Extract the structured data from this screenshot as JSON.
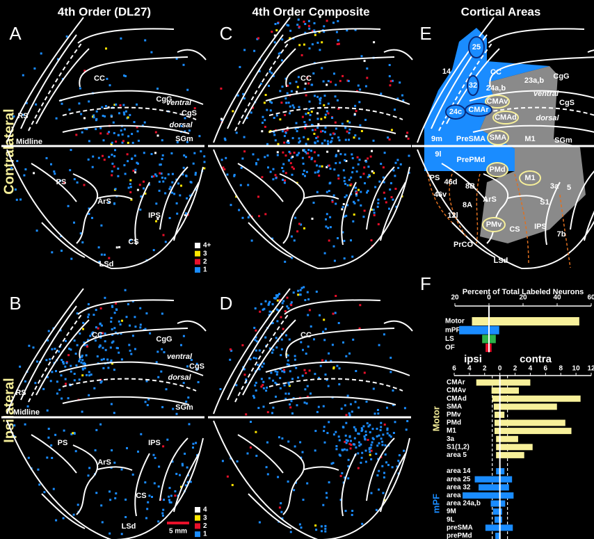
{
  "row_labels": [
    "Contralateral",
    "Ipsilateral"
  ],
  "dot_colors": [
    "#ffffff",
    "#ffe600",
    "#e8102a",
    "#1a8cff"
  ],
  "panels": [
    {
      "letter": "A",
      "title": "4th Order (DL27)",
      "labels": [
        "CC",
        "CgG",
        "RS",
        "ventral",
        "CgS",
        "dorsal",
        "SGm",
        "Midline",
        "PS",
        "ArS",
        "IPS",
        "CS",
        "LSd"
      ],
      "legend": [
        "4+",
        "3",
        "2",
        "1"
      ]
    },
    {
      "letter": "C",
      "title": "4th Order Composite",
      "labels": [
        "CC"
      ]
    },
    {
      "letter": "E",
      "title": "Cortical Areas",
      "labels": [
        "25",
        "14",
        "CC",
        "23a,b",
        "CgG",
        "32",
        "24a,b",
        "ventral",
        "CgS",
        "CMAv",
        "24c",
        "CMAr",
        "CMAd",
        "dorsal",
        "9m",
        "PreSMA",
        "SMA",
        "M1",
        "SGm",
        "9l",
        "PrePMd",
        "PMd",
        "M1",
        "3a",
        "5",
        "PS",
        "46d",
        "8B",
        "46v",
        "8A",
        "ArS",
        "S1",
        "12l",
        "PMv",
        "CS",
        "IPS",
        "7b",
        "PrCO",
        "LSd"
      ]
    },
    {
      "letter": "B",
      "labels": [
        "CC",
        "CgG",
        "RS",
        "ventral",
        "CgS",
        "dorsal",
        "SGm",
        "Midline",
        "PS",
        "ArS",
        "IPS",
        "CS",
        "LSd"
      ],
      "legend": [
        "4",
        "3",
        "2",
        "1"
      ],
      "scale_bar": "5 mm"
    },
    {
      "letter": "D",
      "labels": [
        "CC"
      ]
    },
    {
      "letter": "F"
    }
  ],
  "chart_data": [
    {
      "type": "bar",
      "orientation": "horizontal",
      "title": "Percent of Total Labeled Neurons",
      "categories": [
        "Motor",
        "mPF",
        "LS",
        "OF"
      ],
      "colors": [
        "#f7f09a",
        "#1a8cff",
        "#2db34a",
        "#e8102a"
      ],
      "series": [
        {
          "side": "left",
          "values": [
            10,
            17.5,
            4,
            2
          ]
        },
        {
          "side": "right",
          "values": [
            53,
            6,
            4,
            1.5
          ]
        }
      ],
      "xlim": [
        -20,
        60
      ],
      "xticks": [
        {
          "value": -20,
          "label": "20"
        },
        0,
        20,
        40,
        60
      ]
    },
    {
      "type": "bar",
      "orientation": "horizontal",
      "categories": [
        "CMAr",
        "CMAv",
        "CMAd",
        "SMA",
        "PMv",
        "PMd",
        "M1",
        "3a",
        "S1(1,2)",
        "area 5",
        null,
        "area 14",
        "area 25",
        "area 32",
        "area 24c",
        "area 24a,b",
        "9M",
        "9L",
        "preSMA",
        "prePMd"
      ],
      "groups": [
        {
          "label": "Motor",
          "color": "#f7f09a"
        },
        {
          "label": "mPF",
          "color": "#1a8cff"
        }
      ],
      "series": [
        {
          "name": "ipsi",
          "side": "left",
          "values": [
            3.1,
            1.1,
            1,
            0.8,
            0.7,
            0.7,
            0.7,
            0.5,
            0.5,
            0.5,
            null,
            0.5,
            3.3,
            2.8,
            4.9,
            1.2,
            0.9,
            0.7,
            1.9,
            0.6
          ]
        },
        {
          "name": "contra",
          "side": "right",
          "values": [
            4,
            2.5,
            10.6,
            7.5,
            0.6,
            8.6,
            9.4,
            2.4,
            4.3,
            3.2,
            null,
            0.6,
            1.6,
            1.2,
            1.8,
            0.7,
            0.3,
            0.3,
            1.7,
            0.1
          ]
        }
      ],
      "reference_lines": [
        -1,
        1
      ],
      "xlim": [
        -6,
        12
      ],
      "xticks": [
        {
          "value": -6,
          "label": "6"
        },
        {
          "value": -4,
          "label": "4"
        },
        {
          "value": -2,
          "label": "2"
        },
        0,
        2,
        4,
        6,
        8,
        10,
        12
      ]
    }
  ]
}
